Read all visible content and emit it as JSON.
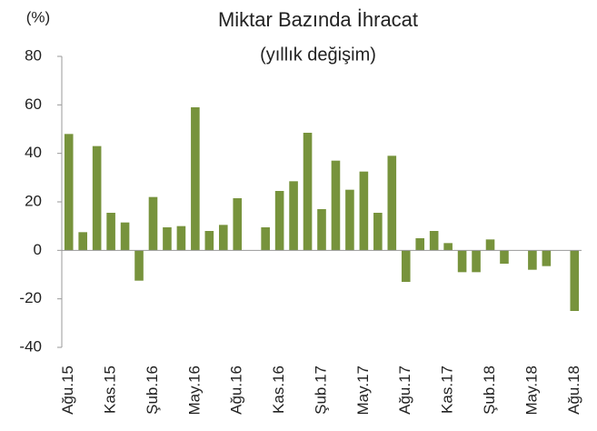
{
  "chart_data": {
    "type": "bar",
    "title": "Miktar Bazında İhracat",
    "subtitle": "(yıllık değişim)",
    "y_label": "(%)",
    "categories": [
      "Ağu.15",
      null,
      null,
      "Kas.15",
      null,
      null,
      "Şub.16",
      null,
      null,
      "May.16",
      null,
      null,
      "Ağu.16",
      null,
      null,
      "Kas.16",
      null,
      null,
      "Şub.17",
      null,
      null,
      "May.17",
      null,
      null,
      "Ağu.17",
      null,
      null,
      "Kas.17",
      null,
      null,
      "Şub.18",
      null,
      null,
      "May.18",
      null,
      null,
      "Ağu.18"
    ],
    "values": [
      48,
      7.5,
      43,
      15.5,
      11.5,
      -12.5,
      22,
      9.5,
      10,
      59,
      8,
      10.5,
      21.5,
      0,
      9.5,
      24.5,
      28.5,
      48.5,
      17,
      37,
      25,
      32.5,
      15.5,
      39,
      -13,
      5,
      8,
      3,
      -9,
      -9,
      4.5,
      -5.5,
      0,
      -8,
      -6.5,
      0,
      -25
    ],
    "color": "#77933c",
    "ylim": [
      -40,
      80
    ],
    "yticks": [
      -40,
      -20,
      0,
      20,
      40,
      60,
      80
    ]
  }
}
